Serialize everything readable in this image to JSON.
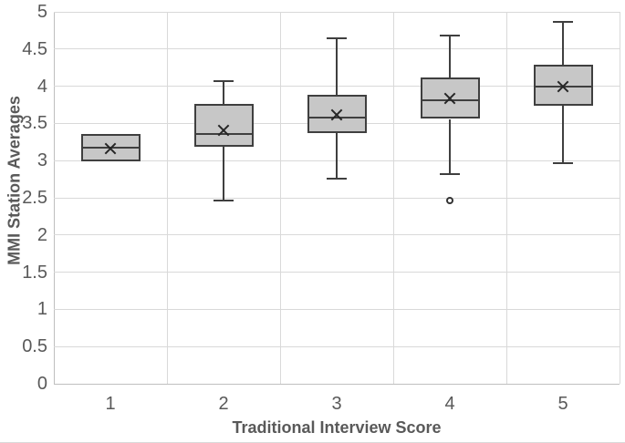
{
  "chart_data": {
    "type": "box",
    "title": "",
    "xlabel": "Traditional Interview Score",
    "ylabel": "MMI Station Averages",
    "categories": [
      "1",
      "2",
      "3",
      "4",
      "5"
    ],
    "ylim": [
      0,
      5
    ],
    "ytick_step": 0.5,
    "yticks": [
      5,
      4.5,
      4,
      3.5,
      3,
      2.5,
      2,
      1.5,
      1,
      0.5,
      0
    ],
    "grid": true,
    "legend": "none",
    "boxes": [
      {
        "category": "1",
        "min": 2.99,
        "q1": 2.99,
        "median": 3.17,
        "q3": 3.36,
        "max": 3.36,
        "mean": 3.16,
        "outliers": []
      },
      {
        "category": "2",
        "min": 2.46,
        "q1": 3.19,
        "median": 3.36,
        "q3": 3.76,
        "max": 4.07,
        "mean": 3.41,
        "outliers": []
      },
      {
        "category": "3",
        "min": 2.76,
        "q1": 3.37,
        "median": 3.58,
        "q3": 3.88,
        "max": 4.64,
        "mean": 3.61,
        "outliers": []
      },
      {
        "category": "4",
        "min": 2.82,
        "q1": 3.56,
        "median": 3.81,
        "q3": 4.12,
        "max": 4.68,
        "mean": 3.84,
        "outliers": [
          2.46
        ]
      },
      {
        "category": "5",
        "min": 2.97,
        "q1": 3.74,
        "median": 4.0,
        "q3": 4.29,
        "max": 4.87,
        "mean": 4.0,
        "outliers": []
      }
    ],
    "colors": {
      "box_fill": "#c7c7c7",
      "box_border": "#3f3f3f",
      "gridline": "#d9d9d9",
      "axis_line": "#bfbfbf",
      "text": "#595959",
      "mean_marker": "#262626"
    }
  }
}
